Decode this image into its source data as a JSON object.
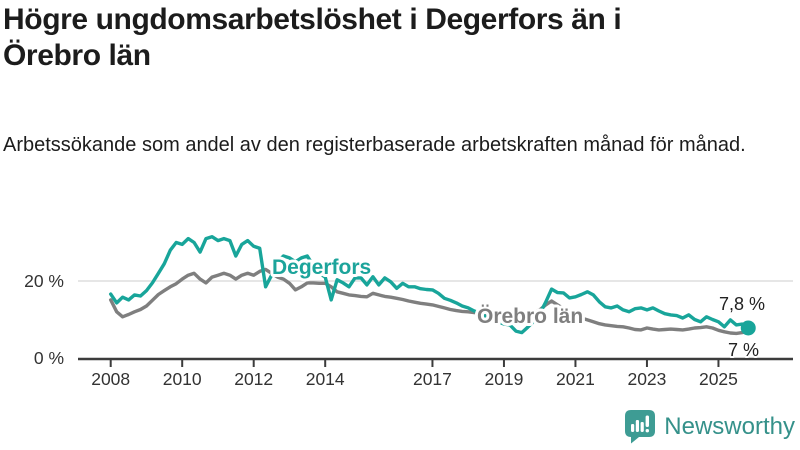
{
  "header": {
    "title": "Högre ungdomsarbetslöshet i Degerfors än i Örebro län",
    "subtitle": "Arbetssökande som andel av den registerbaserade arbetskraften månad för månad."
  },
  "chart_data": {
    "type": "line",
    "unit": "%",
    "x_start_year": 2008,
    "x_step_years": 0.166667,
    "grid": "horizontal line at 20% only",
    "legend": "inline series labels on chart",
    "xlim": [
      2007.1,
      2027.1
    ],
    "ylim": [
      0,
      35
    ],
    "x_ticks": [
      {
        "year": 2008,
        "label": "2008"
      },
      {
        "year": 2010,
        "label": "2010"
      },
      {
        "year": 2012,
        "label": "2012"
      },
      {
        "year": 2014,
        "label": "2014"
      },
      {
        "year": 2017,
        "label": "2017"
      },
      {
        "year": 2019,
        "label": "2019"
      },
      {
        "year": 2021,
        "label": "2021"
      },
      {
        "year": 2023,
        "label": "2023"
      },
      {
        "year": 2025,
        "label": "2025"
      }
    ],
    "y_ticks": [
      {
        "value": 0,
        "label": "0 %"
      },
      {
        "value": 20,
        "label": "20 %"
      }
    ],
    "series": [
      {
        "name": "Degerfors",
        "color": "#18a59a",
        "end_label": "7,8 %",
        "end_value": 7.8,
        "end_marker": true,
        "values": [
          16.6,
          14.3,
          15.8,
          15.1,
          16.4,
          16.1,
          17.5,
          19.5,
          22.0,
          24.5,
          28.0,
          30.0,
          29.5,
          31.0,
          30.0,
          27.5,
          31.0,
          31.5,
          30.5,
          31.0,
          30.5,
          26.5,
          29.5,
          30.5,
          29.0,
          28.5,
          18.5,
          21.5,
          25.0,
          26.5,
          26.0,
          25.0,
          26.0,
          26.5,
          24.0,
          22.0,
          21.0,
          15.1,
          20.3,
          19.5,
          18.5,
          20.8,
          20.8,
          19.0,
          21.1,
          19.0,
          20.8,
          19.8,
          18.1,
          19.4,
          18.5,
          18.5,
          18.0,
          17.8,
          17.7,
          16.8,
          15.5,
          15.0,
          14.3,
          13.5,
          13.0,
          12.2,
          11.7,
          10.7,
          10.0,
          9.4,
          8.8,
          8.6,
          7.0,
          6.6,
          8.0,
          9.5,
          11.5,
          14.5,
          17.9,
          17.0,
          16.9,
          15.6,
          15.9,
          16.5,
          17.2,
          16.4,
          14.6,
          13.3,
          13.0,
          13.5,
          12.5,
          12.0,
          12.8,
          13.0,
          12.5,
          13.0,
          12.2,
          11.5,
          11.2,
          11.0,
          10.4,
          11.2,
          10.0,
          9.4,
          10.7,
          10.0,
          9.4,
          8.1,
          9.9,
          8.6,
          8.8,
          7.8
        ]
      },
      {
        "name": "Örebro län",
        "color": "#7f7f7f",
        "end_label": "7 %",
        "end_value": 7,
        "end_marker": false,
        "values": [
          15.1,
          12.0,
          10.7,
          11.3,
          12.0,
          12.6,
          13.5,
          15.0,
          16.5,
          17.5,
          18.5,
          19.3,
          20.5,
          21.5,
          22.0,
          20.5,
          19.5,
          21.0,
          21.5,
          22.0,
          21.5,
          20.5,
          21.5,
          22.0,
          21.5,
          22.5,
          23.0,
          22.0,
          21.0,
          20.5,
          19.4,
          17.7,
          18.5,
          19.5,
          19.5,
          19.4,
          19.4,
          18.5,
          17.2,
          16.8,
          16.4,
          16.2,
          16.0,
          15.9,
          16.8,
          16.4,
          16.0,
          15.8,
          15.5,
          15.2,
          14.8,
          14.5,
          14.2,
          14.0,
          13.8,
          13.4,
          13.0,
          12.6,
          12.3,
          12.1,
          12.0,
          11.8,
          11.6,
          11.5,
          11.5,
          11.6,
          11.7,
          11.6,
          11.5,
          11.4,
          11.5,
          11.8,
          12.5,
          13.8,
          14.8,
          13.8,
          12.8,
          12.2,
          11.4,
          10.4,
          9.9,
          9.4,
          8.9,
          8.6,
          8.4,
          8.2,
          8.1,
          7.8,
          7.4,
          7.3,
          7.8,
          7.5,
          7.3,
          7.4,
          7.5,
          7.4,
          7.3,
          7.5,
          7.8,
          7.9,
          8.1,
          7.8,
          7.2,
          6.8,
          6.5,
          6.4,
          6.6,
          7.0
        ]
      }
    ]
  },
  "logo": {
    "text": "Newsworthy",
    "icon": "bar-chart-speech-bubble-icon",
    "color": "#3e9c94"
  }
}
